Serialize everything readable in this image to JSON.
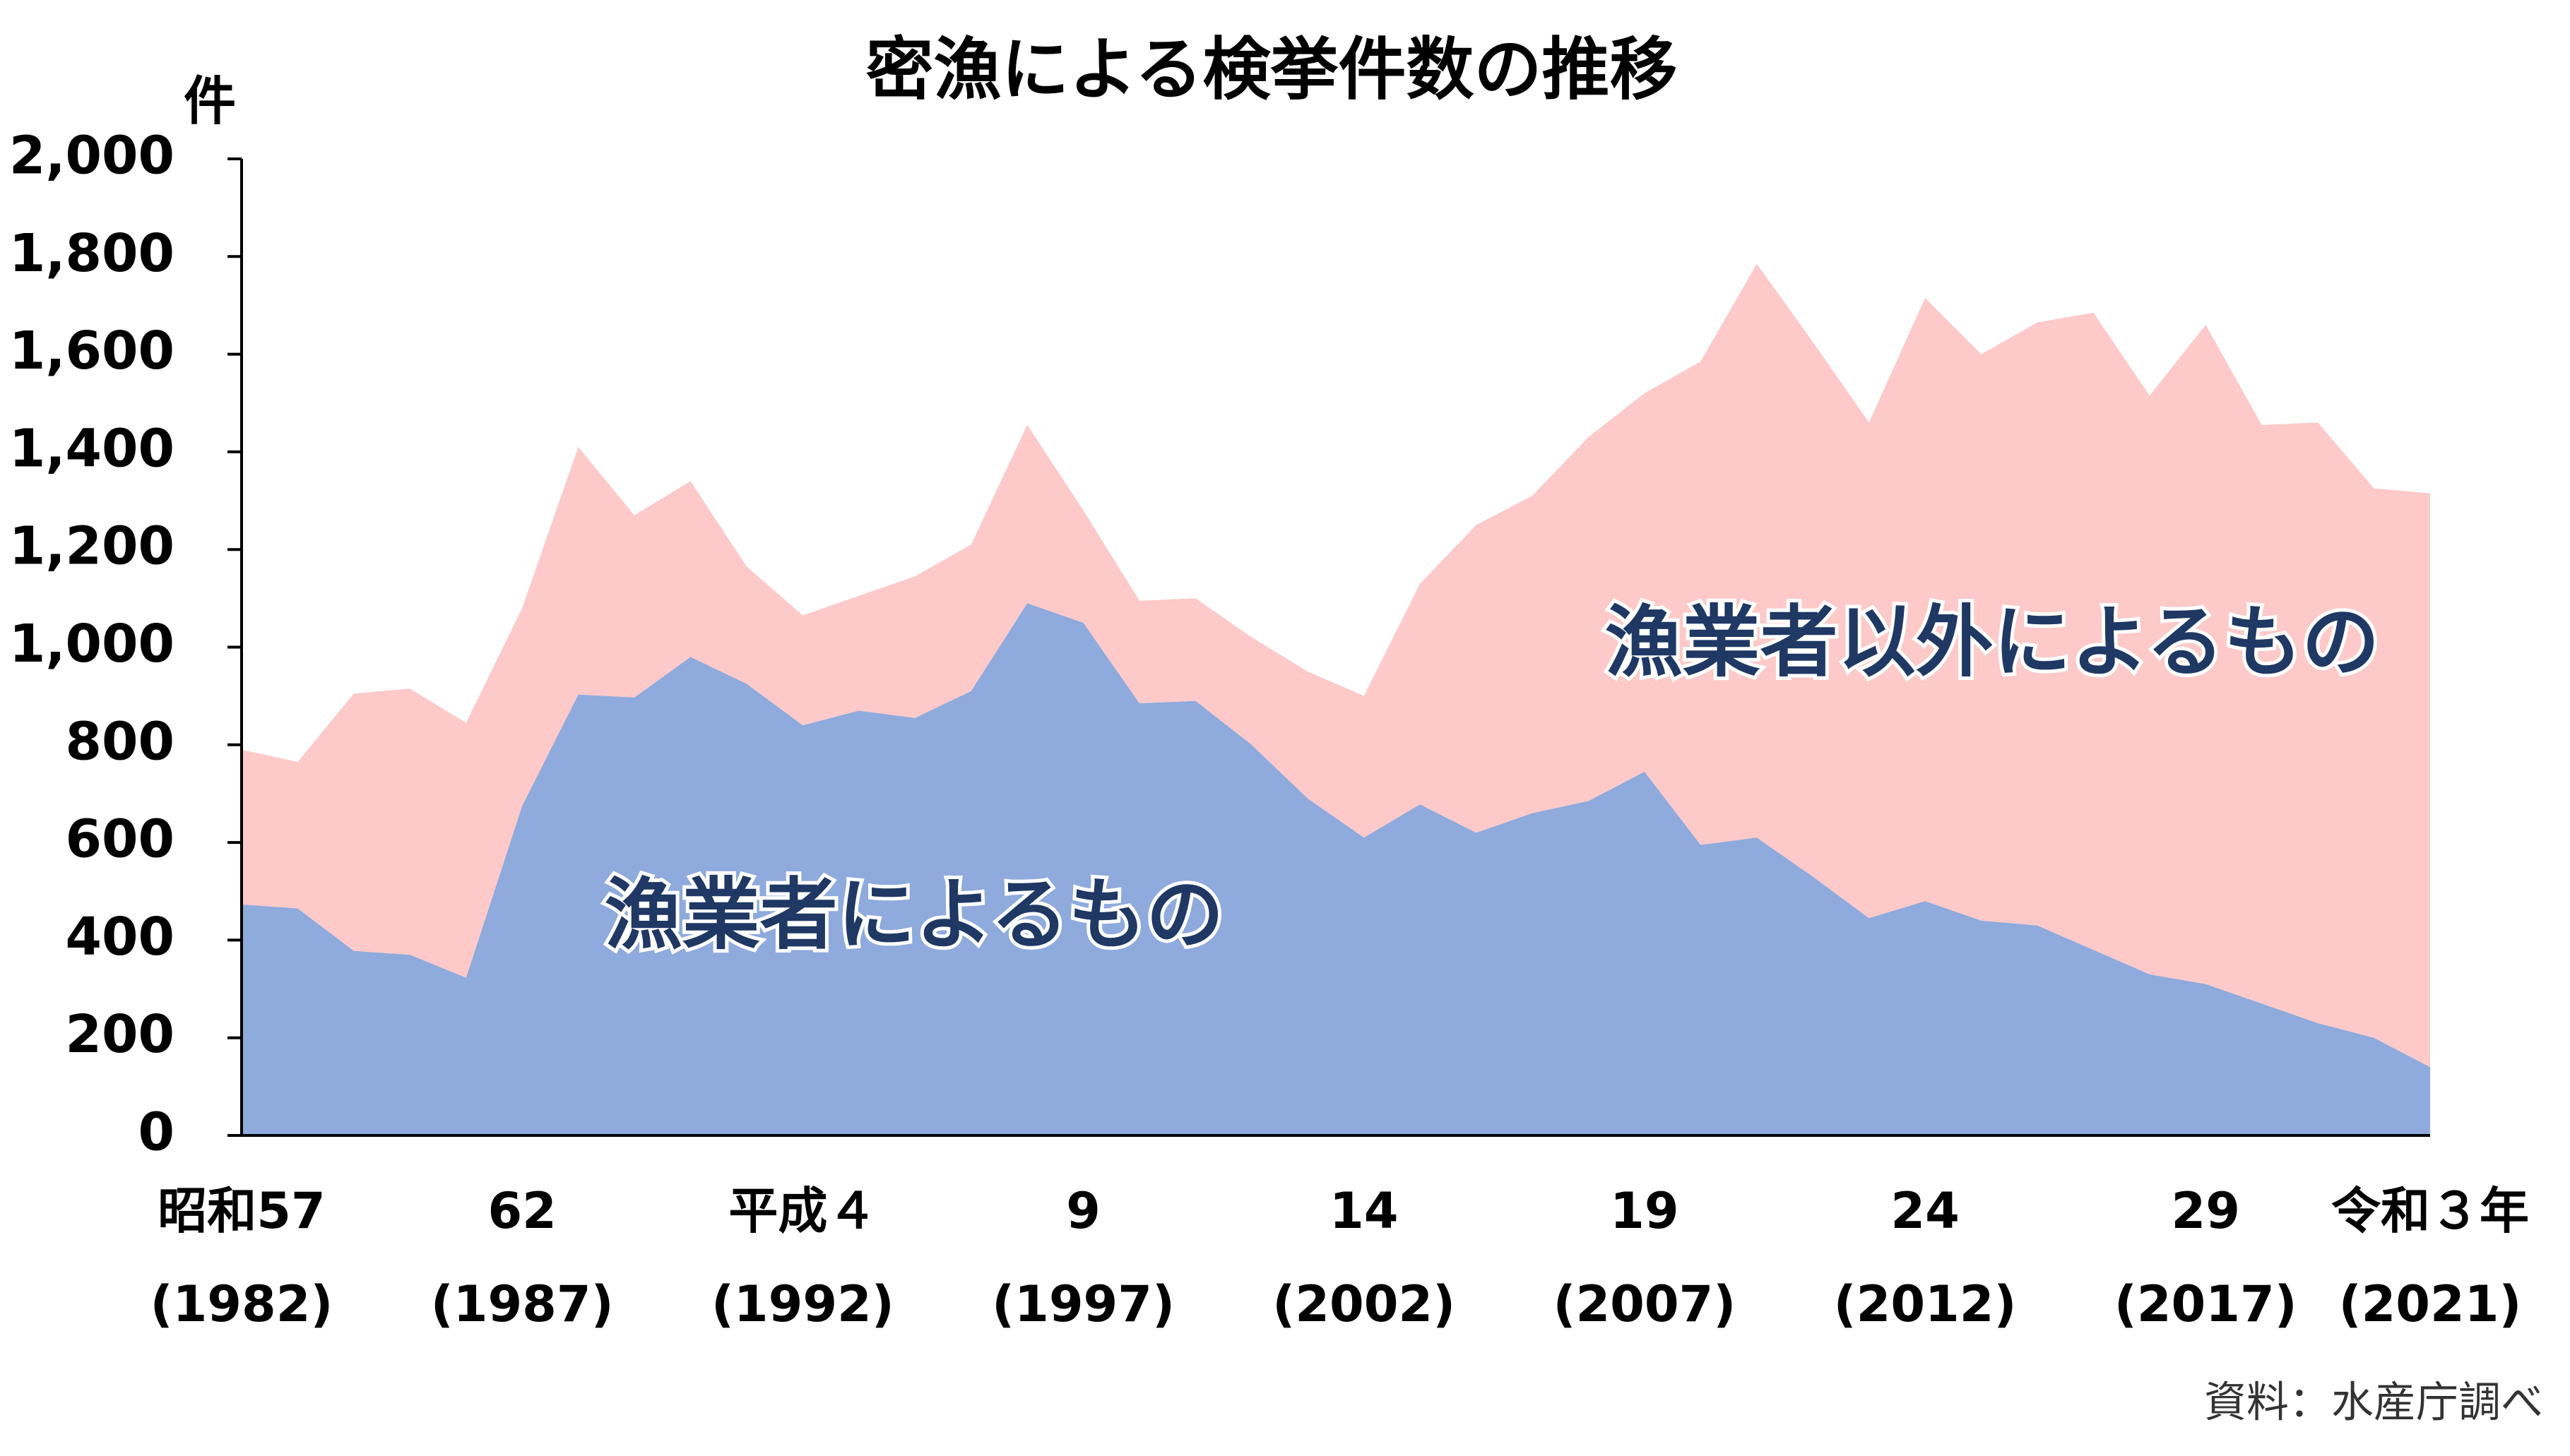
{
  "chart_data": {
    "type": "stacked_area",
    "title": "密漁による検挙件数の推移",
    "y_label": "件",
    "source": "資料：水産庁調べ",
    "categories": [
      {
        "label": "昭和57",
        "year": "(1982)"
      },
      null,
      null,
      null,
      null,
      {
        "label": "62",
        "year": "(1987)"
      },
      null,
      null,
      null,
      null,
      {
        "label": "平成４",
        "year": "(1992)"
      },
      null,
      null,
      null,
      null,
      {
        "label": "9",
        "year": "(1997)"
      },
      null,
      null,
      null,
      null,
      {
        "label": "14",
        "year": "(2002)"
      },
      null,
      null,
      null,
      null,
      {
        "label": "19",
        "year": "(2007)"
      },
      null,
      null,
      null,
      null,
      {
        "label": "24",
        "year": "(2012)"
      },
      null,
      null,
      null,
      null,
      {
        "label": "29",
        "year": "(2017)"
      },
      null,
      null,
      null,
      {
        "label": "令和３年",
        "year": "(2021)"
      }
    ],
    "series": [
      {
        "name": "漁業者によるもの",
        "color": "#8faadc",
        "values": [
          473,
          465,
          378,
          370,
          323,
          675,
          903,
          897,
          980,
          925,
          840,
          870,
          855,
          910,
          1090,
          1050,
          885,
          890,
          800,
          690,
          610,
          678,
          620,
          660,
          685,
          745,
          595,
          610,
          530,
          445,
          480,
          440,
          430,
          380,
          330,
          310,
          270,
          230,
          200,
          140
        ]
      },
      {
        "name": "漁業者以外によるもの",
        "color": "#fdc9c9",
        "values": [
          317,
          300,
          527,
          545,
          522,
          405,
          507,
          373,
          360,
          240,
          225,
          235,
          290,
          300,
          365,
          230,
          210,
          210,
          220,
          260,
          290,
          452,
          630,
          650,
          745,
          775,
          990,
          1175,
          1095,
          1015,
          1235,
          1160,
          1235,
          1305,
          1185,
          1350,
          1185,
          1230,
          1125,
          1175
        ]
      }
    ],
    "ylim": [
      0,
      2000
    ],
    "yticks": [
      0,
      200,
      400,
      600,
      800,
      {
        "value": 1000,
        "label": "1,000"
      },
      {
        "value": 1200,
        "label": "1,200"
      },
      {
        "value": 1400,
        "label": "1,400"
      },
      {
        "value": 1600,
        "label": "1,600"
      },
      {
        "value": 1800,
        "label": "1,800"
      },
      {
        "value": 2000,
        "label": "2,000"
      }
    ],
    "grid": false
  }
}
